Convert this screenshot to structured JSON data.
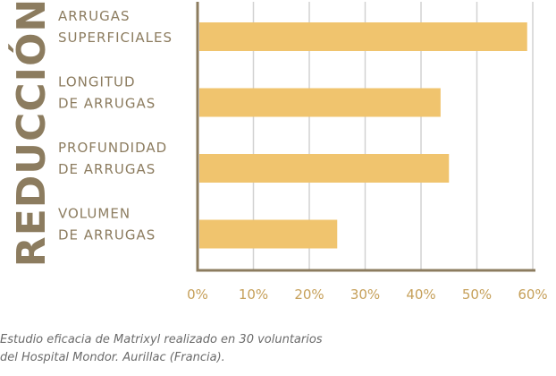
{
  "chart_data": {
    "type": "bar",
    "orientation": "horizontal",
    "ylabel": "REDUCCIÓN",
    "categories": [
      [
        "ARRUGAS",
        "SUPERFICIALES"
      ],
      [
        "LONGITUD",
        "DE ARRUGAS"
      ],
      [
        "PROFUNDIDAD",
        "DE ARRUGAS"
      ],
      [
        "VOLUMEN",
        "DE ARRUGAS"
      ]
    ],
    "values": [
      59,
      43.5,
      45,
      25
    ],
    "xlim": [
      0,
      60
    ],
    "xticks": [
      "0%",
      "10%",
      "20%",
      "30%",
      "40%",
      "50%",
      "60%"
    ],
    "grid": true,
    "bar_color": "#f0c46e",
    "axis_color": "#8c7c5f",
    "grid_color": "#d2d2d2",
    "label_color": "#8c7c5f",
    "tick_color": "#c6a05a"
  },
  "footnote": {
    "line1": "Estudio eficacia de Matrixyl realizado en 30 voluntarios",
    "line2": "del Hospital Mondor. Aurillac (Francia)."
  }
}
